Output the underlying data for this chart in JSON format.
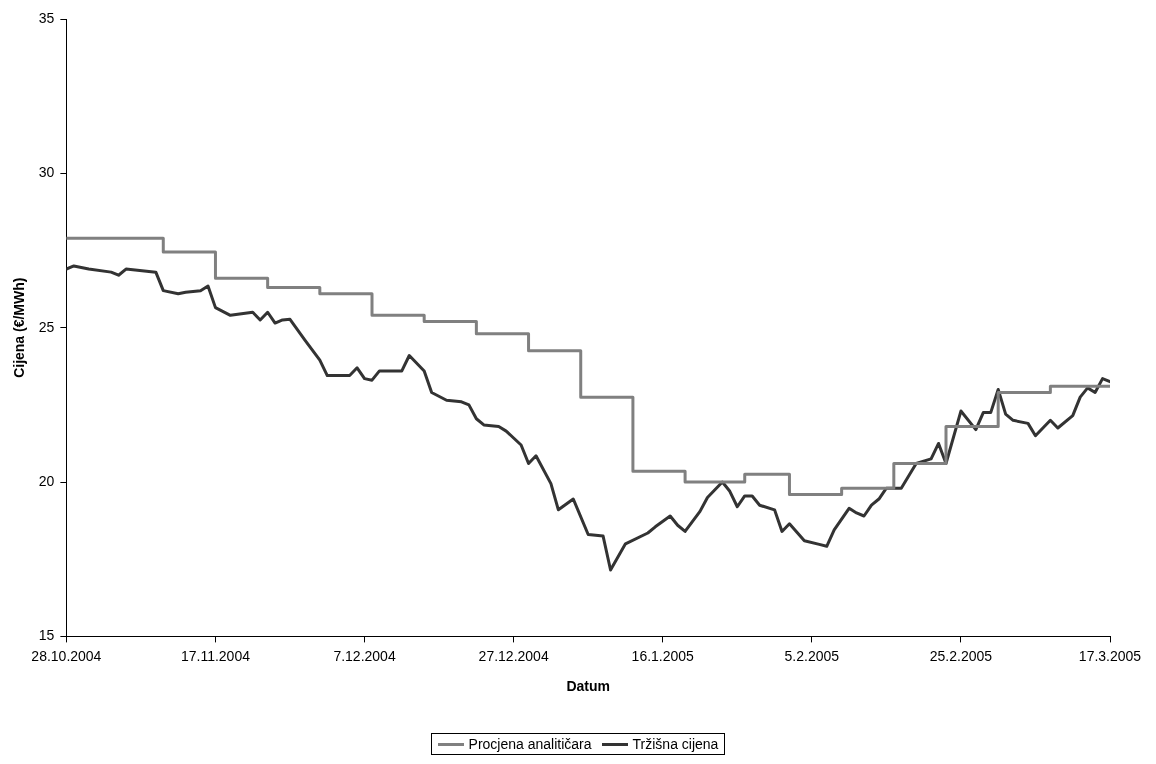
{
  "chart_data": {
    "type": "line",
    "xlabel": "Datum",
    "ylabel": "Cijena (€/MWh)",
    "xlim": [
      "2004-10-28",
      "2005-03-17"
    ],
    "xticks": [
      {
        "value": "2004-10-28",
        "label": "28.10.2004"
      },
      {
        "value": "2004-11-17",
        "label": "17.11.2004"
      },
      {
        "value": "2004-12-07",
        "label": "7.12.2004"
      },
      {
        "value": "2004-12-27",
        "label": "27.12.2004"
      },
      {
        "value": "2005-01-16",
        "label": "16.1.2005"
      },
      {
        "value": "2005-02-05",
        "label": "5.2.2005"
      },
      {
        "value": "2005-02-25",
        "label": "25.2.2005"
      },
      {
        "value": "2005-03-17",
        "label": "17.3.2005"
      }
    ],
    "ylim": [
      15,
      35
    ],
    "yticks": [
      15,
      20,
      25,
      30,
      35
    ],
    "grid": false,
    "legend": "bottom",
    "series": [
      {
        "name": "Procjena analitičara",
        "type": "step",
        "color": "#808080",
        "x": [
          "2004-10-28",
          "2004-11-10",
          "2004-11-17",
          "2004-11-24",
          "2004-12-01",
          "2004-12-08",
          "2004-12-15",
          "2004-12-22",
          "2004-12-29",
          "2005-01-05",
          "2005-01-12",
          "2005-01-19",
          "2005-01-27",
          "2005-02-02",
          "2005-02-09",
          "2005-02-16",
          "2005-02-23",
          "2005-03-02",
          "2005-03-09",
          "2005-03-17"
        ],
        "values": [
          27.9,
          27.45,
          26.6,
          26.3,
          26.1,
          25.4,
          25.2,
          24.8,
          24.25,
          22.75,
          20.35,
          20.0,
          20.25,
          19.6,
          19.8,
          20.6,
          21.8,
          22.9,
          23.1,
          23.1
        ]
      },
      {
        "name": "Tržišna cijena",
        "type": "line",
        "color": "#333333",
        "x": [
          "2004-10-28",
          "2004-10-29",
          "2004-10-31",
          "2004-11-03",
          "2004-11-04",
          "2004-11-05",
          "2004-11-09",
          "2004-11-10",
          "2004-11-12",
          "2004-11-13",
          "2004-11-15",
          "2004-11-16",
          "2004-11-17",
          "2004-11-19",
          "2004-11-22",
          "2004-11-23",
          "2004-11-24",
          "2004-11-25",
          "2004-11-26",
          "2004-11-27",
          "2004-11-29",
          "2004-12-01",
          "2004-12-02",
          "2004-12-05",
          "2004-12-06",
          "2004-12-07",
          "2004-12-08",
          "2004-12-09",
          "2004-12-12",
          "2004-12-13",
          "2004-12-15",
          "2004-12-16",
          "2004-12-18",
          "2004-12-20",
          "2004-12-21",
          "2004-12-22",
          "2004-12-23",
          "2004-12-25",
          "2004-12-26",
          "2004-12-28",
          "2004-12-29",
          "2004-12-30",
          "2005-01-01",
          "2005-01-02",
          "2005-01-04",
          "2005-01-06",
          "2005-01-08",
          "2005-01-09",
          "2005-01-11",
          "2005-01-14",
          "2005-01-15",
          "2005-01-17",
          "2005-01-18",
          "2005-01-19",
          "2005-01-21",
          "2005-01-22",
          "2005-01-24",
          "2005-01-25",
          "2005-01-26",
          "2005-01-27",
          "2005-01-28",
          "2005-01-29",
          "2005-01-31",
          "2005-02-01",
          "2005-02-02",
          "2005-02-04",
          "2005-02-06",
          "2005-02-07",
          "2005-02-08",
          "2005-02-10",
          "2005-02-11",
          "2005-02-12",
          "2005-02-13",
          "2005-02-14",
          "2005-02-15",
          "2005-02-17",
          "2005-02-19",
          "2005-02-21",
          "2005-02-22",
          "2005-02-23",
          "2005-02-25",
          "2005-02-27",
          "2005-02-28",
          "2005-03-01",
          "2005-03-02",
          "2005-03-03",
          "2005-03-04",
          "2005-03-06",
          "2005-03-07",
          "2005-03-09",
          "2005-03-10",
          "2005-03-12",
          "2005-03-13",
          "2005-03-14",
          "2005-03-15",
          "2005-03-16",
          "2005-03-17"
        ],
        "values": [
          26.9,
          27.0,
          26.9,
          26.8,
          26.7,
          26.9,
          26.8,
          26.2,
          26.1,
          26.15,
          26.2,
          26.35,
          25.65,
          25.4,
          25.5,
          25.25,
          25.5,
          25.15,
          25.25,
          25.27,
          24.6,
          23.95,
          23.45,
          23.45,
          23.7,
          23.35,
          23.3,
          23.6,
          23.6,
          24.1,
          23.6,
          22.9,
          22.65,
          22.6,
          22.5,
          22.05,
          21.85,
          21.8,
          21.65,
          21.2,
          20.6,
          20.85,
          19.95,
          19.1,
          19.45,
          18.3,
          18.25,
          17.15,
          18.0,
          18.35,
          18.55,
          18.9,
          18.6,
          18.4,
          19.05,
          19.5,
          20.0,
          19.7,
          19.2,
          19.55,
          19.55,
          19.25,
          19.1,
          18.4,
          18.65,
          18.1,
          17.98,
          17.92,
          18.45,
          19.15,
          19.0,
          18.9,
          19.25,
          19.45,
          19.8,
          19.8,
          20.6,
          20.75,
          21.25,
          20.6,
          22.3,
          21.7,
          22.25,
          22.25,
          23.0,
          22.2,
          22.0,
          21.9,
          21.5,
          22.0,
          21.75,
          22.15,
          22.75,
          23.05,
          22.9,
          23.35,
          23.25
        ]
      }
    ]
  }
}
